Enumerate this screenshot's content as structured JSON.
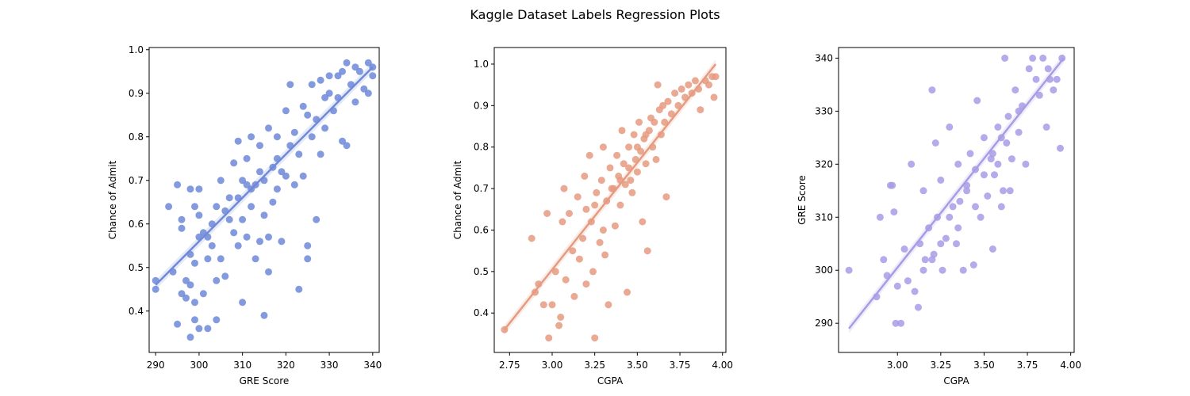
{
  "figure": {
    "title": "Kaggle Dataset Labels Regression Plots"
  },
  "chart_data": [
    {
      "type": "scatter",
      "title": "",
      "xlabel": "GRE Score",
      "ylabel": "Chance of Admit",
      "xlim": [
        288.5,
        341.5
      ],
      "ylim": [
        0.305,
        1.005
      ],
      "xticks": [
        290,
        300,
        310,
        320,
        330,
        340
      ],
      "xtick_labels": [
        "290",
        "300",
        "310",
        "320",
        "330",
        "340"
      ],
      "yticks": [
        0.4,
        0.5,
        0.6,
        0.7,
        0.8,
        0.9,
        1.0
      ],
      "ytick_labels": [
        "0.4",
        "0.5",
        "0.6",
        "0.7",
        "0.8",
        "0.9",
        "1.0"
      ],
      "color": "#6f88d8",
      "regression": {
        "x": [
          290,
          340
        ],
        "y": [
          0.46,
          0.96
        ]
      },
      "points": [
        [
          290,
          0.47
        ],
        [
          290,
          0.45
        ],
        [
          293,
          0.64
        ],
        [
          294,
          0.49
        ],
        [
          295,
          0.37
        ],
        [
          295,
          0.69
        ],
        [
          296,
          0.59
        ],
        [
          296,
          0.44
        ],
        [
          296,
          0.61
        ],
        [
          297,
          0.47
        ],
        [
          297,
          0.43
        ],
        [
          298,
          0.53
        ],
        [
          298,
          0.34
        ],
        [
          298,
          0.68
        ],
        [
          298,
          0.46
        ],
        [
          299,
          0.42
        ],
        [
          299,
          0.51
        ],
        [
          299,
          0.38
        ],
        [
          299,
          0.64
        ],
        [
          300,
          0.57
        ],
        [
          300,
          0.36
        ],
        [
          300,
          0.68
        ],
        [
          300,
          0.62
        ],
        [
          301,
          0.44
        ],
        [
          301,
          0.58
        ],
        [
          302,
          0.52
        ],
        [
          302,
          0.36
        ],
        [
          302,
          0.57
        ],
        [
          303,
          0.6
        ],
        [
          304,
          0.47
        ],
        [
          304,
          0.38
        ],
        [
          304,
          0.64
        ],
        [
          305,
          0.52
        ],
        [
          305,
          0.7
        ],
        [
          306,
          0.48
        ],
        [
          307,
          0.61
        ],
        [
          307,
          0.66
        ],
        [
          308,
          0.58
        ],
        [
          308,
          0.74
        ],
        [
          309,
          0.55
        ],
        [
          309,
          0.79
        ],
        [
          309,
          0.66
        ],
        [
          310,
          0.7
        ],
        [
          310,
          0.42
        ],
        [
          310,
          0.61
        ],
        [
          311,
          0.75
        ],
        [
          311,
          0.57
        ],
        [
          312,
          0.68
        ],
        [
          312,
          0.64
        ],
        [
          312,
          0.8
        ],
        [
          313,
          0.52
        ],
        [
          313,
          0.69
        ],
        [
          314,
          0.78
        ],
        [
          314,
          0.72
        ],
        [
          314,
          0.56
        ],
        [
          315,
          0.7
        ],
        [
          315,
          0.39
        ],
        [
          315,
          0.62
        ],
        [
          316,
          0.49
        ],
        [
          316,
          0.57
        ],
        [
          316,
          0.82
        ],
        [
          317,
          0.73
        ],
        [
          317,
          0.65
        ],
        [
          318,
          0.68
        ],
        [
          318,
          0.8
        ],
        [
          319,
          0.56
        ],
        [
          319,
          0.72
        ],
        [
          320,
          0.71
        ],
        [
          320,
          0.86
        ],
        [
          321,
          0.78
        ],
        [
          321,
          0.92
        ],
        [
          322,
          0.81
        ],
        [
          322,
          0.69
        ],
        [
          323,
          0.76
        ],
        [
          323,
          0.45
        ],
        [
          324,
          0.87
        ],
        [
          324,
          0.71
        ],
        [
          325,
          0.55
        ],
        [
          325,
          0.52
        ],
        [
          325,
          0.85
        ],
        [
          326,
          0.8
        ],
        [
          326,
          0.92
        ],
        [
          327,
          0.61
        ],
        [
          327,
          0.84
        ],
        [
          328,
          0.76
        ],
        [
          328,
          0.93
        ],
        [
          329,
          0.89
        ],
        [
          329,
          0.82
        ],
        [
          330,
          0.94
        ],
        [
          331,
          0.86
        ],
        [
          332,
          0.94
        ],
        [
          333,
          0.79
        ],
        [
          333,
          0.95
        ],
        [
          334,
          0.78
        ],
        [
          334,
          0.97
        ],
        [
          335,
          0.92
        ],
        [
          336,
          0.96
        ],
        [
          336,
          0.88
        ],
        [
          337,
          0.95
        ],
        [
          338,
          0.91
        ],
        [
          339,
          0.97
        ],
        [
          339,
          0.9
        ],
        [
          340,
          0.96
        ],
        [
          340,
          0.94
        ],
        [
          332,
          0.89
        ],
        [
          330,
          0.9
        ],
        [
          318,
          0.75
        ],
        [
          306,
          0.63
        ],
        [
          303,
          0.55
        ],
        [
          311,
          0.69
        ]
      ]
    },
    {
      "type": "scatter",
      "title": "",
      "xlabel": "CGPA",
      "ylabel": "Chance of Admit",
      "xlim": [
        2.66,
        4.02
      ],
      "ylim": [
        0.305,
        1.04
      ],
      "xticks": [
        2.75,
        3.0,
        3.25,
        3.5,
        3.75,
        4.0
      ],
      "xtick_labels": [
        "2.75",
        "3.00",
        "3.25",
        "3.50",
        "3.75",
        "4.00"
      ],
      "yticks": [
        0.4,
        0.5,
        0.6,
        0.7,
        0.8,
        0.9,
        1.0
      ],
      "ytick_labels": [
        "0.4",
        "0.5",
        "0.6",
        "0.7",
        "0.8",
        "0.9",
        "1.0"
      ],
      "color": "#e69a80",
      "regression": {
        "x": [
          2.72,
          3.96
        ],
        "y": [
          0.36,
          1.0
        ]
      },
      "points": [
        [
          2.72,
          0.36
        ],
        [
          2.88,
          0.58
        ],
        [
          2.9,
          0.45
        ],
        [
          2.92,
          0.47
        ],
        [
          2.95,
          0.42
        ],
        [
          2.97,
          0.64
        ],
        [
          2.98,
          0.34
        ],
        [
          3.0,
          0.42
        ],
        [
          3.02,
          0.5
        ],
        [
          3.04,
          0.37
        ],
        [
          3.05,
          0.39
        ],
        [
          3.06,
          0.62
        ],
        [
          3.07,
          0.7
        ],
        [
          3.08,
          0.48
        ],
        [
          3.1,
          0.64
        ],
        [
          3.12,
          0.55
        ],
        [
          3.13,
          0.44
        ],
        [
          3.15,
          0.68
        ],
        [
          3.16,
          0.53
        ],
        [
          3.18,
          0.58
        ],
        [
          3.19,
          0.73
        ],
        [
          3.2,
          0.47
        ],
        [
          3.22,
          0.78
        ],
        [
          3.23,
          0.62
        ],
        [
          3.24,
          0.5
        ],
        [
          3.25,
          0.34
        ],
        [
          3.26,
          0.69
        ],
        [
          3.28,
          0.57
        ],
        [
          3.29,
          0.72
        ],
        [
          3.3,
          0.8
        ],
        [
          3.31,
          0.54
        ],
        [
          3.32,
          0.67
        ],
        [
          3.33,
          0.42
        ],
        [
          3.34,
          0.75
        ],
        [
          3.36,
          0.7
        ],
        [
          3.37,
          0.61
        ],
        [
          3.38,
          0.78
        ],
        [
          3.39,
          0.73
        ],
        [
          3.4,
          0.66
        ],
        [
          3.41,
          0.84
        ],
        [
          3.42,
          0.76
        ],
        [
          3.43,
          0.71
        ],
        [
          3.44,
          0.45
        ],
        [
          3.45,
          0.8
        ],
        [
          3.46,
          0.72
        ],
        [
          3.47,
          0.69
        ],
        [
          3.48,
          0.83
        ],
        [
          3.49,
          0.77
        ],
        [
          3.5,
          0.74
        ],
        [
          3.51,
          0.86
        ],
        [
          3.52,
          0.79
        ],
        [
          3.53,
          0.62
        ],
        [
          3.54,
          0.82
        ],
        [
          3.55,
          0.76
        ],
        [
          3.56,
          0.55
        ],
        [
          3.57,
          0.84
        ],
        [
          3.58,
          0.87
        ],
        [
          3.59,
          0.8
        ],
        [
          3.6,
          0.86
        ],
        [
          3.61,
          0.77
        ],
        [
          3.62,
          0.95
        ],
        [
          3.63,
          0.89
        ],
        [
          3.64,
          0.83
        ],
        [
          3.65,
          0.9
        ],
        [
          3.66,
          0.86
        ],
        [
          3.67,
          0.68
        ],
        [
          3.68,
          0.91
        ],
        [
          3.7,
          0.88
        ],
        [
          3.72,
          0.93
        ],
        [
          3.74,
          0.9
        ],
        [
          3.76,
          0.94
        ],
        [
          3.78,
          0.92
        ],
        [
          3.8,
          0.95
        ],
        [
          3.82,
          0.93
        ],
        [
          3.84,
          0.96
        ],
        [
          3.86,
          0.94
        ],
        [
          3.87,
          0.89
        ],
        [
          3.9,
          0.96
        ],
        [
          3.92,
          0.95
        ],
        [
          3.94,
          0.97
        ],
        [
          3.95,
          0.92
        ],
        [
          3.96,
          0.97
        ],
        [
          3.3,
          0.6
        ],
        [
          3.2,
          0.65
        ],
        [
          3.35,
          0.7
        ],
        [
          3.45,
          0.75
        ],
        [
          3.5,
          0.8
        ],
        [
          3.55,
          0.83
        ],
        [
          3.4,
          0.72
        ],
        [
          3.25,
          0.66
        ]
      ]
    },
    {
      "type": "scatter",
      "title": "",
      "xlabel": "CGPA",
      "ylabel": "GRE Score",
      "xlim": [
        2.66,
        4.02
      ],
      "ylim": [
        284.5,
        342.0
      ],
      "xticks": [
        3.0,
        3.25,
        3.5,
        3.75,
        4.0
      ],
      "xtick_labels": [
        "3.00",
        "3.25",
        "3.50",
        "3.75",
        "4.00"
      ],
      "yticks": [
        290,
        300,
        310,
        320,
        330,
        340
      ],
      "ytick_labels": [
        "290",
        "300",
        "310",
        "320",
        "330",
        "340"
      ],
      "color": "#a89ce6",
      "regression": {
        "x": [
          2.72,
          3.96
        ],
        "y": [
          289,
          340
        ]
      },
      "points": [
        [
          2.72,
          300
        ],
        [
          2.88,
          295
        ],
        [
          2.9,
          310
        ],
        [
          2.92,
          302
        ],
        [
          2.94,
          299
        ],
        [
          2.96,
          316
        ],
        [
          2.97,
          316
        ],
        [
          2.98,
          311
        ],
        [
          2.99,
          290
        ],
        [
          3.0,
          297
        ],
        [
          3.02,
          290
        ],
        [
          3.04,
          304
        ],
        [
          3.06,
          298
        ],
        [
          3.08,
          320
        ],
        [
          3.1,
          296
        ],
        [
          3.12,
          293
        ],
        [
          3.13,
          305
        ],
        [
          3.15,
          315
        ],
        [
          3.16,
          302
        ],
        [
          3.18,
          308
        ],
        [
          3.2,
          334
        ],
        [
          3.21,
          303
        ],
        [
          3.22,
          324
        ],
        [
          3.23,
          310
        ],
        [
          3.25,
          317
        ],
        [
          3.26,
          300
        ],
        [
          3.28,
          306
        ],
        [
          3.3,
          327
        ],
        [
          3.32,
          312
        ],
        [
          3.34,
          305
        ],
        [
          3.35,
          320
        ],
        [
          3.36,
          313
        ],
        [
          3.38,
          300
        ],
        [
          3.4,
          316
        ],
        [
          3.42,
          322
        ],
        [
          3.44,
          301
        ],
        [
          3.45,
          319
        ],
        [
          3.46,
          332
        ],
        [
          3.48,
          310
        ],
        [
          3.5,
          325
        ],
        [
          3.52,
          314
        ],
        [
          3.54,
          321
        ],
        [
          3.55,
          304
        ],
        [
          3.56,
          318
        ],
        [
          3.58,
          327
        ],
        [
          3.6,
          312
        ],
        [
          3.61,
          315
        ],
        [
          3.62,
          340
        ],
        [
          3.63,
          324
        ],
        [
          3.64,
          329
        ],
        [
          3.65,
          315
        ],
        [
          3.66,
          321
        ],
        [
          3.68,
          334
        ],
        [
          3.7,
          326
        ],
        [
          3.72,
          331
        ],
        [
          3.74,
          320
        ],
        [
          3.76,
          338
        ],
        [
          3.78,
          340
        ],
        [
          3.8,
          336
        ],
        [
          3.82,
          333
        ],
        [
          3.84,
          340
        ],
        [
          3.86,
          327
        ],
        [
          3.87,
          338
        ],
        [
          3.88,
          336
        ],
        [
          3.9,
          334
        ],
        [
          3.92,
          336
        ],
        [
          3.94,
          323
        ],
        [
          3.95,
          340
        ],
        [
          3.3,
          310
        ],
        [
          3.4,
          315
        ],
        [
          3.5,
          318
        ],
        [
          3.45,
          312
        ],
        [
          3.55,
          322
        ],
        [
          3.35,
          308
        ],
        [
          3.6,
          325
        ],
        [
          3.25,
          305
        ],
        [
          3.2,
          302
        ],
        [
          3.7,
          330
        ],
        [
          3.15,
          300
        ],
        [
          3.58,
          320
        ]
      ]
    }
  ]
}
